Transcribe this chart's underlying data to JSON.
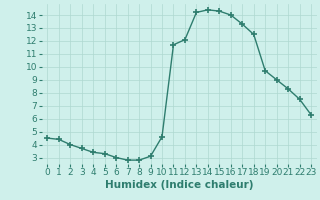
{
  "xlabel": "Humidex (Indice chaleur)",
  "x": [
    0,
    1,
    2,
    3,
    4,
    5,
    6,
    7,
    8,
    9,
    10,
    11,
    12,
    13,
    14,
    15,
    16,
    17,
    18,
    19,
    20,
    21,
    22,
    23
  ],
  "y": [
    4.5,
    4.4,
    4.0,
    3.7,
    3.4,
    3.3,
    3.0,
    2.8,
    2.8,
    3.1,
    4.6,
    11.7,
    12.1,
    14.2,
    14.4,
    14.3,
    14.0,
    13.3,
    12.5,
    9.7,
    9.0,
    8.3,
    7.5,
    6.3
  ],
  "line_color": "#2e7d6e",
  "marker": "+",
  "marker_size": 4,
  "marker_lw": 1.2,
  "line_width": 1.0,
  "bg_color": "#cff0eb",
  "grid_color": "#aed8d0",
  "xlim": [
    -0.5,
    23.5
  ],
  "ylim": [
    2.5,
    14.85
  ],
  "yticks": [
    3,
    4,
    5,
    6,
    7,
    8,
    9,
    10,
    11,
    12,
    13,
    14
  ],
  "xticks": [
    0,
    1,
    2,
    3,
    4,
    5,
    6,
    7,
    8,
    9,
    10,
    11,
    12,
    13,
    14,
    15,
    16,
    17,
    18,
    19,
    20,
    21,
    22,
    23
  ],
  "tick_color": "#2e7d6e",
  "label_color": "#2e7d6e",
  "xlabel_fontsize": 7.5,
  "tick_fontsize": 6.5
}
